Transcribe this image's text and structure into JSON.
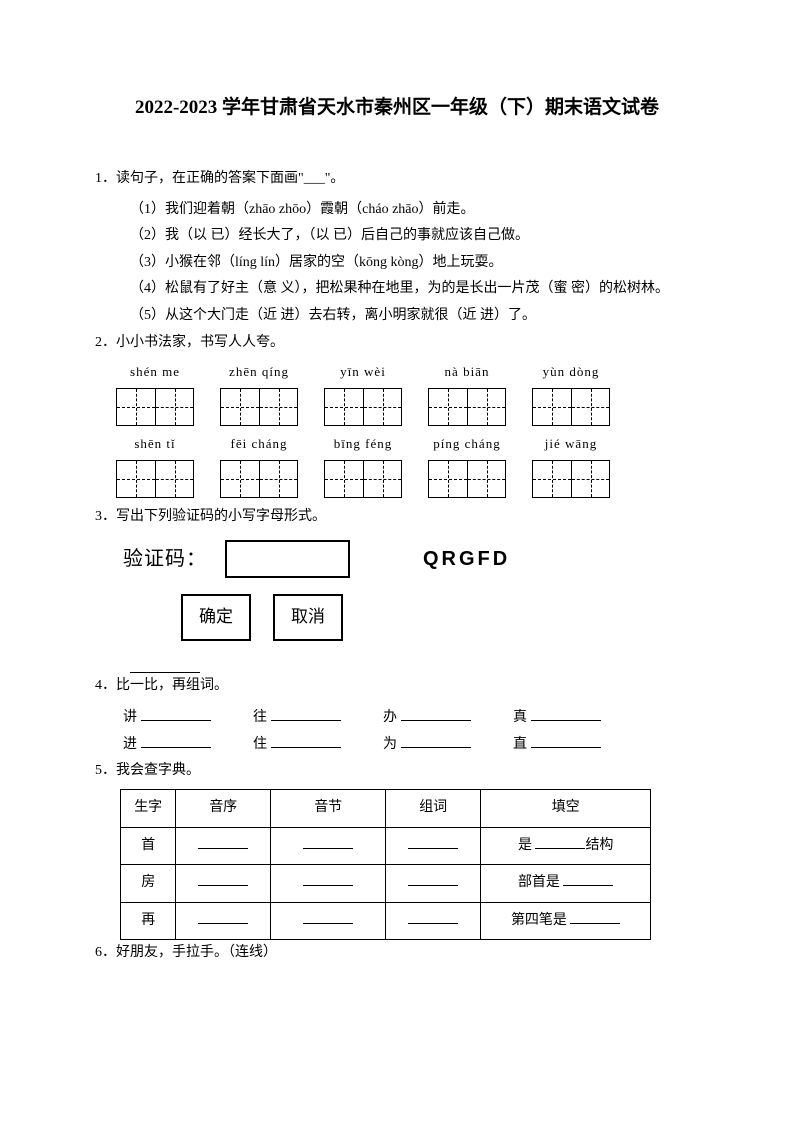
{
  "title": "2022-2023 学年甘肃省天水市秦州区一年级（下）期末语文试卷",
  "q1": {
    "stem": "1．读句子，在正确的答案下面画\"___\"。",
    "items": [
      "（1）我们迎着朝（zhāo zhōo）霞朝（cháo zhāo）前走。",
      "（2）我（以 已）经长大了，（以 已）后自己的事就应该自己做。",
      "（3）小猴在邻（líng lín）居家的空（kōng kòng）地上玩耍。",
      "（4）松鼠有了好主（意 义），把松果种在地里，为的是长出一片茂（蜜 密）的松树林。",
      "（5）从这个大门走（近 进）去右转，离小明家就很（近 进）了。"
    ]
  },
  "q2": {
    "stem": "2．小小书法家，书写人人夸。",
    "row1": [
      "shén me",
      "zhēn qíng",
      "yīn wèi",
      "nà biān",
      "yùn dòng"
    ],
    "row2": [
      "shēn tǐ",
      "fēi cháng",
      "bīng féng",
      "píng cháng",
      "jié wāng"
    ]
  },
  "q3": {
    "stem": "3．写出下列验证码的小写字母形式。",
    "label": "验证码：",
    "code": "QRGFD",
    "btn_ok": "确定",
    "btn_cancel": "取消"
  },
  "q4": {
    "stem": "4．比一比，再组词。",
    "rows": [
      [
        "讲",
        "往",
        "办",
        "真"
      ],
      [
        "进",
        "住",
        "为",
        "直"
      ]
    ]
  },
  "q5": {
    "stem": "5．我会查字典。",
    "headers": [
      "生字",
      "音序",
      "音节",
      "组词",
      "填空"
    ],
    "rows": [
      {
        "char": "首",
        "fill_prefix": "是",
        "fill_suffix": "结构"
      },
      {
        "char": "房",
        "fill_prefix": "部首是",
        "fill_suffix": ""
      },
      {
        "char": "再",
        "fill_prefix": "第四笔是",
        "fill_suffix": ""
      }
    ],
    "col_widths": [
      "55px",
      "95px",
      "115px",
      "95px",
      "170px"
    ]
  },
  "q6": {
    "stem": "6．好朋友，手拉手。（连线）"
  }
}
